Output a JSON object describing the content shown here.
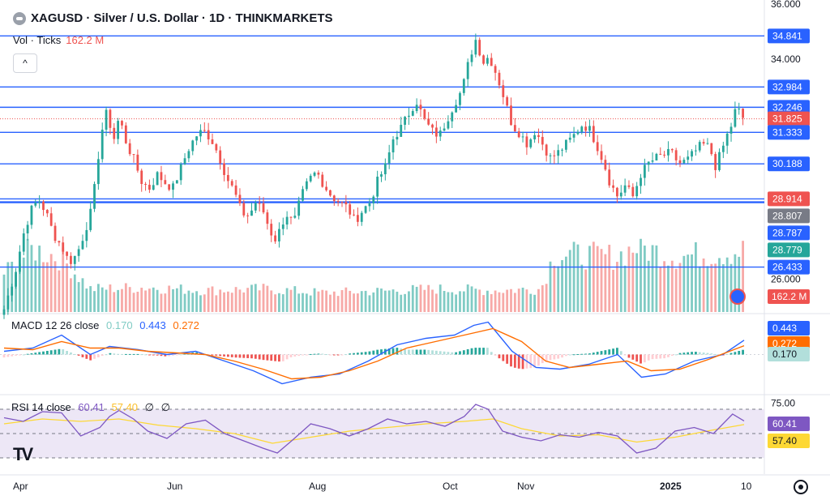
{
  "header": {
    "symbol": "XAGUSD",
    "title": "XAGUSD · Silver / U.S. Dollar · 1D · THINKMARKETS",
    "vol_label": "Vol · Ticks",
    "vol_value": "162.2 M",
    "collapse_glyph": "^",
    "macd_label": "MACD 12 26 close",
    "macd_vals": [
      "0.170",
      "0.443",
      "0.272"
    ],
    "rsi_label": "RSI 14 close",
    "rsi_vals": [
      "60.41",
      "57.40"
    ],
    "rsi_hidden": [
      "∅",
      "∅"
    ],
    "logo": "TV"
  },
  "colors": {
    "up": "#26a69a",
    "down": "#ef5350",
    "hline": "#2962ff",
    "macd": "#2962ff",
    "signal": "#ff6d00",
    "rsi": "#7e57c2",
    "rsi_ma": "#fdd835"
  },
  "chart_data": {
    "type": "candlestick",
    "title": "XAGUSD · Silver / U.S. Dollar · 1D · THINKMARKETS",
    "ylim": [
      24.8,
      36.0
    ],
    "y_ticks": [
      "36.000",
      "34.000",
      "26.000"
    ],
    "x_ticks": [
      "Apr",
      "Jun",
      "Aug",
      "Oct",
      "Nov",
      "2025",
      "10"
    ],
    "last_price": 31.825,
    "horizontal_lines": [
      34.841,
      32.984,
      32.246,
      31.333,
      30.188,
      28.914,
      28.807,
      28.787,
      28.779,
      26.433
    ],
    "price_labels": [
      {
        "text": "34.841",
        "color": "#2962ff"
      },
      {
        "text": "32.984",
        "color": "#2962ff"
      },
      {
        "text": "32.246",
        "color": "#2962ff"
      },
      {
        "text": "31.825",
        "color": "#ef5350"
      },
      {
        "text": "31.333",
        "color": "#2962ff"
      },
      {
        "text": "30.188",
        "color": "#2962ff"
      },
      {
        "text": "28.914",
        "color": "#ef5350"
      },
      {
        "text": "28.807",
        "color": "#787b86"
      },
      {
        "text": "28.787",
        "color": "#2962ff"
      },
      {
        "text": "28.779",
        "color": "#26a69a"
      },
      {
        "text": "26.433",
        "color": "#2962ff"
      }
    ],
    "close_path": [
      {
        "x": 0,
        "y": 24.9
      },
      {
        "x": 6,
        "y": 25.6
      },
      {
        "x": 12,
        "y": 26.3
      },
      {
        "x": 20,
        "y": 27.6
      },
      {
        "x": 28,
        "y": 28.5
      },
      {
        "x": 36,
        "y": 28.9
      },
      {
        "x": 44,
        "y": 28.4
      },
      {
        "x": 52,
        "y": 27.6
      },
      {
        "x": 60,
        "y": 27.2
      },
      {
        "x": 68,
        "y": 26.6
      },
      {
        "x": 76,
        "y": 26.9
      },
      {
        "x": 84,
        "y": 27.7
      },
      {
        "x": 92,
        "y": 28.6
      },
      {
        "x": 98,
        "y": 30.4
      },
      {
        "x": 104,
        "y": 31.8
      },
      {
        "x": 108,
        "y": 32.1
      },
      {
        "x": 114,
        "y": 31.0
      },
      {
        "x": 120,
        "y": 31.9
      },
      {
        "x": 128,
        "y": 30.9
      },
      {
        "x": 136,
        "y": 30.3
      },
      {
        "x": 144,
        "y": 29.5
      },
      {
        "x": 152,
        "y": 29.3
      },
      {
        "x": 160,
        "y": 29.8
      },
      {
        "x": 168,
        "y": 29.5
      },
      {
        "x": 176,
        "y": 29.3
      },
      {
        "x": 184,
        "y": 30.0
      },
      {
        "x": 192,
        "y": 30.7
      },
      {
        "x": 200,
        "y": 31.2
      },
      {
        "x": 208,
        "y": 31.4
      },
      {
        "x": 216,
        "y": 31.1
      },
      {
        "x": 224,
        "y": 30.5
      },
      {
        "x": 232,
        "y": 29.7
      },
      {
        "x": 240,
        "y": 29.2
      },
      {
        "x": 248,
        "y": 28.4
      },
      {
        "x": 256,
        "y": 28.3
      },
      {
        "x": 262,
        "y": 28.8
      },
      {
        "x": 270,
        "y": 28.5
      },
      {
        "x": 276,
        "y": 27.9
      },
      {
        "x": 282,
        "y": 27.4
      },
      {
        "x": 288,
        "y": 27.8
      },
      {
        "x": 294,
        "y": 28.4
      },
      {
        "x": 302,
        "y": 28.0
      },
      {
        "x": 310,
        "y": 29.0
      },
      {
        "x": 318,
        "y": 29.6
      },
      {
        "x": 326,
        "y": 29.9
      },
      {
        "x": 334,
        "y": 29.4
      },
      {
        "x": 342,
        "y": 29.0
      },
      {
        "x": 350,
        "y": 28.8
      },
      {
        "x": 358,
        "y": 28.6
      },
      {
        "x": 366,
        "y": 28.1
      },
      {
        "x": 374,
        "y": 28.5
      },
      {
        "x": 382,
        "y": 28.8
      },
      {
        "x": 390,
        "y": 29.6
      },
      {
        "x": 398,
        "y": 30.1
      },
      {
        "x": 406,
        "y": 31.1
      },
      {
        "x": 414,
        "y": 31.5
      },
      {
        "x": 422,
        "y": 32.0
      },
      {
        "x": 430,
        "y": 32.5
      },
      {
        "x": 438,
        "y": 31.8
      },
      {
        "x": 446,
        "y": 31.4
      },
      {
        "x": 454,
        "y": 31.2
      },
      {
        "x": 462,
        "y": 31.8
      },
      {
        "x": 470,
        "y": 32.4
      },
      {
        "x": 478,
        "y": 32.9
      },
      {
        "x": 484,
        "y": 33.8
      },
      {
        "x": 488,
        "y": 34.3
      },
      {
        "x": 492,
        "y": 34.7
      },
      {
        "x": 496,
        "y": 34.3
      },
      {
        "x": 500,
        "y": 33.9
      },
      {
        "x": 506,
        "y": 34.1
      },
      {
        "x": 512,
        "y": 33.6
      },
      {
        "x": 518,
        "y": 33.0
      },
      {
        "x": 524,
        "y": 32.3
      },
      {
        "x": 530,
        "y": 31.6
      },
      {
        "x": 538,
        "y": 31.3
      },
      {
        "x": 546,
        "y": 30.9
      },
      {
        "x": 554,
        "y": 31.4
      },
      {
        "x": 562,
        "y": 30.9
      },
      {
        "x": 570,
        "y": 30.4
      },
      {
        "x": 578,
        "y": 30.6
      },
      {
        "x": 586,
        "y": 30.9
      },
      {
        "x": 594,
        "y": 31.2
      },
      {
        "x": 602,
        "y": 31.6
      },
      {
        "x": 610,
        "y": 31.5
      },
      {
        "x": 618,
        "y": 30.9
      },
      {
        "x": 626,
        "y": 30.2
      },
      {
        "x": 632,
        "y": 29.5
      },
      {
        "x": 640,
        "y": 29.0
      },
      {
        "x": 648,
        "y": 29.4
      },
      {
        "x": 656,
        "y": 29.0
      },
      {
        "x": 664,
        "y": 29.8
      },
      {
        "x": 672,
        "y": 30.2
      },
      {
        "x": 680,
        "y": 30.4
      },
      {
        "x": 688,
        "y": 30.5
      },
      {
        "x": 696,
        "y": 30.6
      },
      {
        "x": 704,
        "y": 30.2
      },
      {
        "x": 712,
        "y": 30.3
      },
      {
        "x": 720,
        "y": 30.6
      },
      {
        "x": 728,
        "y": 30.9
      },
      {
        "x": 736,
        "y": 30.8
      },
      {
        "x": 742,
        "y": 30.1
      },
      {
        "x": 748,
        "y": 30.6
      },
      {
        "x": 754,
        "y": 31.2
      },
      {
        "x": 760,
        "y": 31.7
      },
      {
        "x": 764,
        "y": 32.3
      },
      {
        "x": 768,
        "y": 32.0
      },
      {
        "x": 772,
        "y": 31.8
      }
    ],
    "volume_path": [
      {
        "x": 0,
        "y": 0.5
      },
      {
        "x": 30,
        "y": 0.82
      },
      {
        "x": 60,
        "y": 0.7
      },
      {
        "x": 90,
        "y": 0.3
      },
      {
        "x": 150,
        "y": 0.32
      },
      {
        "x": 210,
        "y": 0.28
      },
      {
        "x": 270,
        "y": 0.3
      },
      {
        "x": 330,
        "y": 0.25
      },
      {
        "x": 390,
        "y": 0.27
      },
      {
        "x": 450,
        "y": 0.3
      },
      {
        "x": 510,
        "y": 0.28
      },
      {
        "x": 560,
        "y": 0.3
      },
      {
        "x": 574,
        "y": 0.75
      },
      {
        "x": 640,
        "y": 0.72
      },
      {
        "x": 660,
        "y": 0.85
      },
      {
        "x": 700,
        "y": 0.72
      },
      {
        "x": 760,
        "y": 0.78
      },
      {
        "x": 772,
        "y": 0.8
      }
    ],
    "macd": {
      "macd_line": [
        {
          "x": 0,
          "y": 0.1
        },
        {
          "x": 30,
          "y": 0.2
        },
        {
          "x": 60,
          "y": 0.6
        },
        {
          "x": 90,
          "y": 0.0
        },
        {
          "x": 110,
          "y": 0.25
        },
        {
          "x": 140,
          "y": 0.15
        },
        {
          "x": 170,
          "y": 0.0
        },
        {
          "x": 200,
          "y": 0.1
        },
        {
          "x": 230,
          "y": -0.2
        },
        {
          "x": 260,
          "y": -0.5
        },
        {
          "x": 290,
          "y": -0.9
        },
        {
          "x": 320,
          "y": -0.7
        },
        {
          "x": 350,
          "y": -0.6
        },
        {
          "x": 380,
          "y": -0.2
        },
        {
          "x": 410,
          "y": 0.3
        },
        {
          "x": 440,
          "y": 0.5
        },
        {
          "x": 470,
          "y": 0.6
        },
        {
          "x": 490,
          "y": 0.9
        },
        {
          "x": 505,
          "y": 1.0
        },
        {
          "x": 530,
          "y": 0.1
        },
        {
          "x": 555,
          "y": -0.4
        },
        {
          "x": 580,
          "y": -0.45
        },
        {
          "x": 610,
          "y": -0.3
        },
        {
          "x": 640,
          "y": 0.0
        },
        {
          "x": 665,
          "y": -0.7
        },
        {
          "x": 690,
          "y": -0.6
        },
        {
          "x": 720,
          "y": -0.2
        },
        {
          "x": 750,
          "y": 0.0
        },
        {
          "x": 772,
          "y": 0.443
        }
      ],
      "signal_line": [
        {
          "x": 0,
          "y": 0.2
        },
        {
          "x": 30,
          "y": 0.15
        },
        {
          "x": 60,
          "y": 0.4
        },
        {
          "x": 90,
          "y": 0.2
        },
        {
          "x": 120,
          "y": 0.2
        },
        {
          "x": 150,
          "y": 0.1
        },
        {
          "x": 180,
          "y": 0.05
        },
        {
          "x": 210,
          "y": 0.0
        },
        {
          "x": 240,
          "y": -0.2
        },
        {
          "x": 270,
          "y": -0.45
        },
        {
          "x": 300,
          "y": -0.75
        },
        {
          "x": 330,
          "y": -0.7
        },
        {
          "x": 360,
          "y": -0.5
        },
        {
          "x": 390,
          "y": -0.2
        },
        {
          "x": 420,
          "y": 0.2
        },
        {
          "x": 450,
          "y": 0.4
        },
        {
          "x": 480,
          "y": 0.6
        },
        {
          "x": 510,
          "y": 0.8
        },
        {
          "x": 540,
          "y": 0.4
        },
        {
          "x": 565,
          "y": -0.2
        },
        {
          "x": 590,
          "y": -0.4
        },
        {
          "x": 620,
          "y": -0.3
        },
        {
          "x": 650,
          "y": -0.2
        },
        {
          "x": 675,
          "y": -0.5
        },
        {
          "x": 705,
          "y": -0.45
        },
        {
          "x": 735,
          "y": -0.15
        },
        {
          "x": 772,
          "y": 0.272
        }
      ]
    },
    "rsi": {
      "ylim": [
        20,
        80
      ],
      "upper": 70,
      "lower": 30,
      "mid": 50,
      "ticks": [
        "75.00"
      ],
      "rsi_line": [
        {
          "x": 0,
          "y": 63
        },
        {
          "x": 20,
          "y": 60
        },
        {
          "x": 40,
          "y": 68
        },
        {
          "x": 60,
          "y": 67
        },
        {
          "x": 80,
          "y": 48
        },
        {
          "x": 100,
          "y": 55
        },
        {
          "x": 110,
          "y": 64
        },
        {
          "x": 120,
          "y": 69
        },
        {
          "x": 135,
          "y": 62
        },
        {
          "x": 150,
          "y": 52
        },
        {
          "x": 170,
          "y": 46
        },
        {
          "x": 190,
          "y": 58
        },
        {
          "x": 210,
          "y": 61
        },
        {
          "x": 230,
          "y": 50
        },
        {
          "x": 250,
          "y": 44
        },
        {
          "x": 270,
          "y": 38
        },
        {
          "x": 285,
          "y": 34
        },
        {
          "x": 300,
          "y": 44
        },
        {
          "x": 320,
          "y": 58
        },
        {
          "x": 340,
          "y": 54
        },
        {
          "x": 360,
          "y": 48
        },
        {
          "x": 380,
          "y": 54
        },
        {
          "x": 400,
          "y": 62
        },
        {
          "x": 420,
          "y": 58
        },
        {
          "x": 440,
          "y": 60
        },
        {
          "x": 460,
          "y": 56
        },
        {
          "x": 480,
          "y": 64
        },
        {
          "x": 492,
          "y": 74
        },
        {
          "x": 505,
          "y": 70
        },
        {
          "x": 520,
          "y": 52
        },
        {
          "x": 540,
          "y": 47
        },
        {
          "x": 560,
          "y": 44
        },
        {
          "x": 580,
          "y": 49
        },
        {
          "x": 600,
          "y": 47
        },
        {
          "x": 620,
          "y": 51
        },
        {
          "x": 640,
          "y": 48
        },
        {
          "x": 660,
          "y": 34
        },
        {
          "x": 680,
          "y": 38
        },
        {
          "x": 700,
          "y": 52
        },
        {
          "x": 720,
          "y": 55
        },
        {
          "x": 740,
          "y": 50
        },
        {
          "x": 760,
          "y": 66
        },
        {
          "x": 772,
          "y": 60.41
        }
      ],
      "rsi_ma": [
        {
          "x": 0,
          "y": 58
        },
        {
          "x": 40,
          "y": 62
        },
        {
          "x": 80,
          "y": 60
        },
        {
          "x": 120,
          "y": 62
        },
        {
          "x": 160,
          "y": 57
        },
        {
          "x": 200,
          "y": 54
        },
        {
          "x": 240,
          "y": 50
        },
        {
          "x": 280,
          "y": 42
        },
        {
          "x": 320,
          "y": 47
        },
        {
          "x": 360,
          "y": 52
        },
        {
          "x": 400,
          "y": 55
        },
        {
          "x": 440,
          "y": 58
        },
        {
          "x": 480,
          "y": 60
        },
        {
          "x": 510,
          "y": 62
        },
        {
          "x": 540,
          "y": 54
        },
        {
          "x": 580,
          "y": 48
        },
        {
          "x": 620,
          "y": 49
        },
        {
          "x": 660,
          "y": 43
        },
        {
          "x": 700,
          "y": 47
        },
        {
          "x": 740,
          "y": 53
        },
        {
          "x": 772,
          "y": 57.4
        }
      ]
    }
  }
}
